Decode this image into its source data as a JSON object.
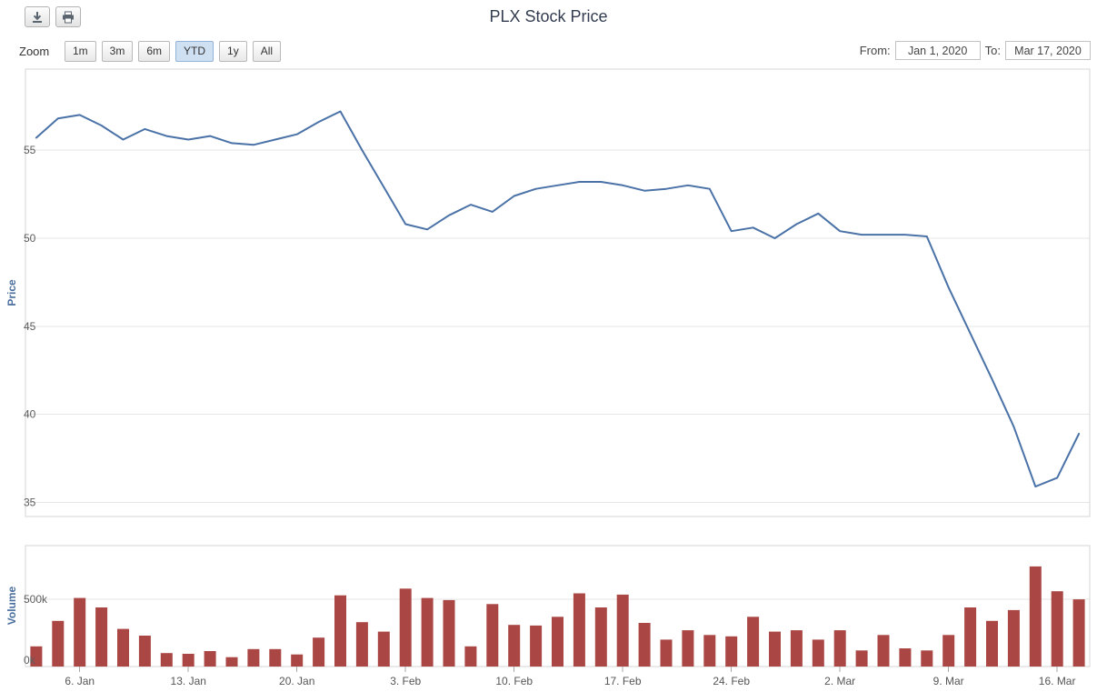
{
  "range_selector": {
    "zoom_label": "Zoom",
    "buttons": [
      {
        "label": "1m",
        "selected": false
      },
      {
        "label": "3m",
        "selected": false
      },
      {
        "label": "6m",
        "selected": false
      },
      {
        "label": "YTD",
        "selected": true
      },
      {
        "label": "1y",
        "selected": false
      },
      {
        "label": "All",
        "selected": false
      }
    ],
    "from_label": "From:",
    "from_value": "Jan 1, 2020",
    "to_label": "To:",
    "to_value": "Mar 17, 2020"
  },
  "toolbar": {
    "icons": [
      "download-icon",
      "print-icon"
    ]
  },
  "colors": {
    "price_line": "#4a72a7",
    "volume_bar": "#aa4643",
    "grid_line": "#e6e6e6",
    "plot_border": "#d4d4d4",
    "axis_label": "#5c5c5c",
    "axis_title": "#4a6f9e",
    "selected_zoom_bg": "#cfe0f3"
  },
  "chart_data": [
    {
      "type": "line",
      "title": "PLX Stock Price",
      "ylabel": "Price",
      "legend": false,
      "grid": true,
      "ylim": [
        34.2,
        59.6
      ],
      "yticks": [
        35,
        40,
        45,
        50,
        55
      ],
      "xtick_indices": [
        2,
        7,
        12,
        17,
        22,
        27,
        32,
        37,
        42,
        47
      ],
      "xtick_labels": [
        "6. Jan",
        "13. Jan",
        "20. Jan",
        "3. Feb",
        "10. Feb",
        "17. Feb",
        "24. Feb",
        "2. Mar",
        "9. Mar",
        "16. Mar"
      ],
      "x": [
        "Jan 2",
        "Jan 3",
        "Jan 6",
        "Jan 7",
        "Jan 8",
        "Jan 9",
        "Jan 10",
        "Jan 13",
        "Jan 14",
        "Jan 15",
        "Jan 16",
        "Jan 17",
        "Jan 20",
        "Jan 21",
        "Jan 22",
        "Jan 30",
        "Jan 31",
        "Feb 3",
        "Feb 4",
        "Feb 5",
        "Feb 6",
        "Feb 7",
        "Feb 10",
        "Feb 11",
        "Feb 12",
        "Feb 13",
        "Feb 14",
        "Feb 17",
        "Feb 18",
        "Feb 19",
        "Feb 20",
        "Feb 21",
        "Feb 24",
        "Feb 25",
        "Feb 26",
        "Feb 27",
        "Feb 28",
        "Mar 2",
        "Mar 3",
        "Mar 4",
        "Mar 5",
        "Mar 6",
        "Mar 9",
        "Mar 10",
        "Mar 11",
        "Mar 12",
        "Mar 13",
        "Mar 16",
        "Mar 17"
      ],
      "values": [
        55.7,
        56.8,
        57.0,
        56.4,
        55.6,
        56.2,
        55.8,
        55.6,
        55.8,
        55.4,
        55.3,
        55.6,
        55.9,
        56.6,
        57.2,
        55.0,
        52.9,
        50.8,
        50.5,
        51.3,
        51.9,
        51.5,
        52.4,
        52.8,
        53.0,
        53.2,
        53.2,
        53.0,
        52.7,
        52.8,
        53.0,
        52.8,
        50.4,
        50.6,
        50.0,
        50.8,
        51.4,
        50.4,
        50.2,
        50.2,
        50.2,
        50.1,
        47.2,
        44.6,
        42.0,
        39.3,
        35.9,
        36.4,
        38.9
      ]
    },
    {
      "type": "bar",
      "ylabel": "Volume",
      "unit": "k",
      "ylim": [
        0,
        900
      ],
      "yticks": [
        {
          "value": 0,
          "label": "0k"
        },
        {
          "value": 500,
          "label": "500k"
        }
      ],
      "values": [
        150,
        340,
        510,
        440,
        280,
        230,
        100,
        95,
        115,
        70,
        130,
        130,
        90,
        215,
        530,
        330,
        260,
        580,
        510,
        495,
        150,
        465,
        310,
        305,
        370,
        545,
        440,
        535,
        325,
        200,
        270,
        235,
        225,
        370,
        260,
        270,
        200,
        270,
        120,
        235,
        135,
        120,
        235,
        440,
        340,
        420,
        745,
        560,
        500
      ]
    }
  ]
}
